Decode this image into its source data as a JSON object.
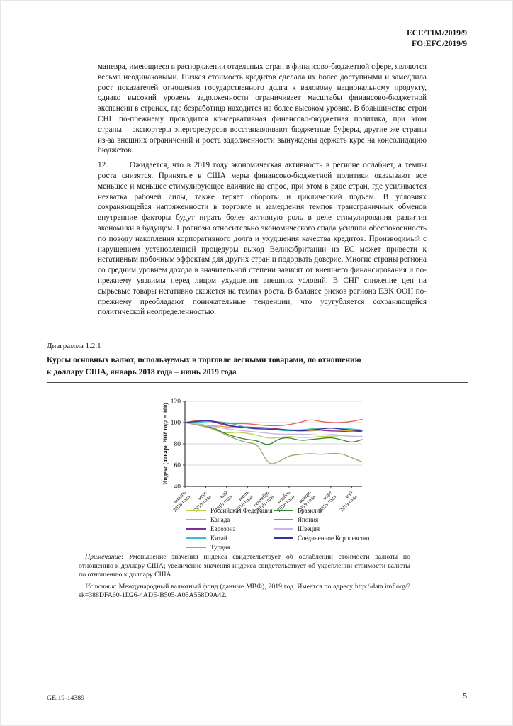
{
  "header": {
    "doc_symbol_1": "ECE/TIM/2019/9",
    "doc_symbol_2": "FO:EFC/2019/9"
  },
  "body": {
    "para11_text": "маневра, имеющиеся в распоряжении отдельных стран в финансово-бюджетной сфере, являются весьма неодинаковыми. Низкая стоимость кредитов сделала их более доступными и замедлила рост показателей отношения государственного долга к валовому национальному продукту, однако высокий уровень задолженности ограничивает масштабы финансово-бюджетной экспансии в странах, где безработица находится на более высоком уровне. В большинстве стран СНГ по-прежнему проводится консервативная финансово-бюджетная политика, при этом страны – экспортеры энергоресурсов восстанавливают бюджетные буферы, другие же страны из-за внешних ограничений и роста задолженности вынуждены держать курс на консолидацию бюджетов.",
    "para12_number": "12.",
    "para12_text": "Ожидается, что в 2019 году экономическая активность в регионе ослабнет, а темпы роста снизятся. Принятые в США меры финансово-бюджетной политики оказывают все меньшее и меньшее стимулирующее влияние на спрос, при этом в ряде стран, где усиливается нехватка рабочей силы, также теряет обороты и циклический подъем. В условиях сохраняющейся напряженности в торговле и замедления темпов трансграничных обменов внутренние факторы будут играть более активную роль в деле стимулирования развития экономики в будущем. Прогнозы относительно экономического спада усилили обеспокоенность по поводу накопления корпоративного долга и ухудшения качества кредитов. Производимый с нарушением установленной процедуры выход Великобритании из ЕС может привести к негативным побочным эффектам для других стран и подорвать доверие. Многие страны региона со средним уровнем дохода в значительной степени зависят от внешнего финансирования и по-прежнему уязвимы перед лицом ухудшения внешних условий. В СНГ снижение цен на сырьевые товары негативно скажется на темпах роста. В балансе рисков региона ЕЭК ООН по-прежнему преобладают понижательные тенденции, что усугубляется сохраняющейся политической неопределенностью."
  },
  "figure": {
    "label": "Диаграмма 1.2.1",
    "title_line1": "Курсы основных валют, используемых в торговле лесными товарами, по отношению",
    "title_line2": "к доллару США, январь 2018 года – июнь 2019 года",
    "note_label": "Примечание",
    "note_body": ":  Уменьшение значения индекса свидетельствует об ослаблении стоимости валюты по отношению к доллару США; увеличение значения индекса свидетельствует об укреплении стоимости валюты по отношению к доллару США.",
    "source_label": "Источник",
    "source_body": ":  Международный валютный фонд (данные МВФ), 2019 год. Имеется по адресу ",
    "source_url": "http://data.imf.org/?sk=388DFA60-1D26-4ADE-B505-A05A558D9A42",
    "source_tail": "."
  },
  "chart_data": {
    "type": "line",
    "title": "",
    "ylabel": "Индекс (январь 2018 года = 100)",
    "ylim": [
      40,
      120
    ],
    "yticks": [
      40,
      60,
      80,
      100,
      120
    ],
    "gridlines": [
      60,
      80,
      100,
      120
    ],
    "n_points": 18,
    "x_months": [
      "янв 2018",
      "фев 2018",
      "мар 2018",
      "апр 2018",
      "май 2018",
      "июн 2018",
      "июл 2018",
      "авг 2018",
      "сен 2018",
      "окт 2018",
      "ноя 2018",
      "дек 2018",
      "янв 2019",
      "фев 2019",
      "мар 2019",
      "апр 2019",
      "май 2019",
      "июн 2019"
    ],
    "x_tick_positions": [
      0,
      2,
      4,
      6,
      8,
      10,
      12,
      14,
      16
    ],
    "x_tick_labels": [
      [
        "январь",
        "2018 года"
      ],
      [
        "март",
        "2018 года"
      ],
      [
        "май",
        "2018 года"
      ],
      [
        "июль",
        "2018 года"
      ],
      [
        "сентябрь",
        "2018 года"
      ],
      [
        "ноябрь",
        "2018 года"
      ],
      [
        "январь",
        "2019 года"
      ],
      [
        "март",
        "2019 года"
      ],
      [
        "май",
        "2019 года"
      ]
    ],
    "legend_position": "bottom",
    "grid": true,
    "series": [
      {
        "name": "Российская Федерация",
        "color": "#bcd24a",
        "values": [
          100,
          99,
          98,
          92,
          90,
          91,
          90,
          88,
          85,
          86,
          87,
          86,
          86,
          87,
          87,
          88,
          87,
          87
        ]
      },
      {
        "name": "Канада",
        "color": "#e8a33d",
        "values": [
          100,
          99,
          97,
          97,
          96,
          95,
          95,
          96,
          95,
          94,
          93,
          92,
          92,
          93,
          93,
          93,
          92,
          93
        ]
      },
      {
        "name": "Еврозона",
        "color": "#7b2f8e",
        "values": [
          100,
          101,
          102,
          100,
          97,
          96,
          96,
          95,
          95,
          94,
          93,
          93,
          93,
          93,
          92,
          92,
          91,
          92
        ]
      },
      {
        "name": "Китай",
        "color": "#36c3c6",
        "values": [
          100,
          100,
          101,
          101,
          100,
          98,
          95,
          94,
          94,
          93,
          92,
          93,
          94,
          95,
          95,
          95,
          94,
          93
        ]
      },
      {
        "name": "Турция",
        "color": "#a8a269",
        "values": [
          100,
          98,
          96,
          93,
          88,
          84,
          81,
          80,
          60,
          63,
          69,
          70,
          71,
          70,
          71,
          71,
          67,
          63
        ]
      },
      {
        "name": "Бразилия",
        "color": "#2f8b3b",
        "values": [
          100,
          99,
          97,
          94,
          89,
          86,
          84,
          83,
          78,
          85,
          86,
          83,
          84,
          85,
          86,
          84,
          81,
          84
        ]
      },
      {
        "name": "Япония",
        "color": "#e26260",
        "values": [
          100,
          102,
          102,
          101,
          99,
          99,
          99,
          98,
          97,
          97,
          98,
          100,
          103,
          101,
          100,
          100,
          101,
          103
        ]
      },
      {
        "name": "Швеция",
        "color": "#cab5e6",
        "values": [
          100,
          99,
          97,
          96,
          94,
          93,
          92,
          91,
          90,
          89,
          89,
          89,
          89,
          88,
          89,
          88,
          87,
          87
        ]
      },
      {
        "name": "Соединенное Королевство",
        "color": "#32339d",
        "values": [
          100,
          101,
          102,
          101,
          98,
          96,
          95,
          94,
          94,
          93,
          93,
          92,
          93,
          94,
          95,
          94,
          93,
          92
        ]
      }
    ]
  },
  "footer": {
    "job_number": "GE.19-14389",
    "page_number": "5"
  }
}
